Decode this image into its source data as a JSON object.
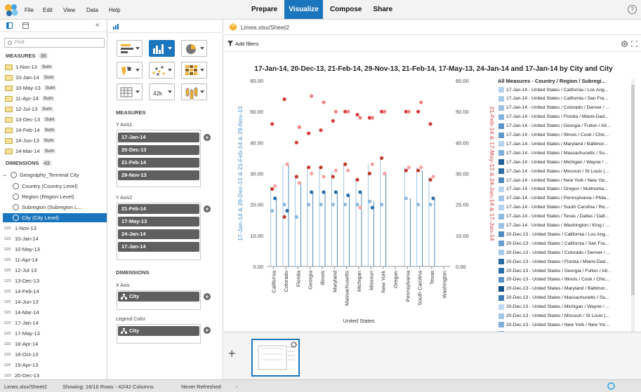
{
  "menu": {
    "items": [
      "File",
      "Edit",
      "View",
      "Data",
      "Help"
    ]
  },
  "tabs": [
    "Prepare",
    "Visualize",
    "Compose",
    "Share"
  ],
  "active_tab": "Visualize",
  "help_label": "?",
  "left_panel": {
    "search_placeholder": "Find",
    "collapse_label": "«",
    "measures_label": "MEASURES",
    "measures_count": "36",
    "measures": [
      {
        "name": "1-Nov-13",
        "agg": "Sum"
      },
      {
        "name": "10-Jan-14",
        "agg": "Sum"
      },
      {
        "name": "10-May-13",
        "agg": "Sum"
      },
      {
        "name": "11-Apr-14",
        "agg": "Sum"
      },
      {
        "name": "12-Jul-13",
        "agg": "Sum"
      },
      {
        "name": "13-Dec-13",
        "agg": "Sum"
      },
      {
        "name": "14-Feb-14",
        "agg": "Sum"
      },
      {
        "name": "14-Jun-13",
        "agg": "Sum"
      },
      {
        "name": "14-Mar-14",
        "agg": "Sum"
      }
    ],
    "dimensions_label": "DIMENSIONS",
    "dimensions_count": "43",
    "geography": "Geography_Terminal City",
    "geo_levels": [
      "Country (Country Level)",
      "Region (Region Level)",
      "Subregion (Subregion L...",
      "City (City Level)"
    ],
    "selected_level": "City (City Level)",
    "numeric_prefix": "123",
    "numeric_dims": [
      "1-Nov-13",
      "10-Jan-14",
      "10-May-13",
      "11-Apr-14",
      "12-Jul-13",
      "13-Dec-13",
      "14-Feb-14",
      "14-Jun-13",
      "14-Mar-14",
      "17-Jan-14",
      "17-May-13",
      "18-Apr-14",
      "18-Oct-13",
      "19-Apr-13",
      "20-Dec-13"
    ]
  },
  "mid_panel": {
    "text_icon_label": "42k",
    "measures_label": "MEASURES",
    "y_axis1_label": "Y Axis1",
    "y_axis1": [
      "17-Jan-14",
      "20-Dec-13",
      "21-Feb-14",
      "29-Nov-13"
    ],
    "y_axis2_label": "Y Axis2",
    "y_axis2": [
      "21-Feb-14",
      "17-May-13",
      "24-Jan-14",
      "17-Jan-14"
    ],
    "dimensions_label": "DIMENSIONS",
    "x_axis_label": "X Axis",
    "x_axis_pill": "City",
    "legend_color_label": "Legend Color",
    "legend_color_pill": "City",
    "plus_label": "+"
  },
  "content": {
    "file_title": "Limes.xlsx/Sheet2",
    "add_filters": "Add filters",
    "add_sheet_label": "+"
  },
  "colors": {
    "accent": "#1b75bc",
    "red": "#d6322c",
    "blue_axis": "#7fb1dc",
    "red_axis": "#e07b7b"
  },
  "chart_data": {
    "type": "scatter",
    "title": "17-Jan-14, 20-Dec-13, 21-Feb-14, 29-Nov-13, 21-Feb-14, 17-May-13, 24-Jan-14 and 17-Jan-14 by City and City",
    "y1label": "17-Jan-14 & 20-Dec-13 & 21-Feb-14 & 29-Nov-13",
    "y2label": "21-Feb-14 & 17-May-13 & 24-Jan-14 & 17-Jan-14",
    "xlabel": "United States",
    "ylim": [
      0,
      60
    ],
    "yticks": [
      "0.00",
      "10.00",
      "20.00",
      "30.00",
      "40.00",
      "50.00",
      "60.00"
    ],
    "categories": [
      "California",
      "Colorado",
      "Florida",
      "Georgia",
      "Illinois",
      "Maryland",
      "Massachusetts",
      "Michigan",
      "Missouri",
      "New York",
      "Oregon",
      "Pennsylvania",
      "South Carolina",
      "Texas",
      "Washington"
    ],
    "series": [
      {
        "name": "17-Jan-14",
        "color": "#8ab8e0",
        "values": [
          18,
          20,
          16,
          20,
          20,
          20,
          20,
          20,
          21,
          20,
          null,
          22,
          20,
          20,
          null
        ]
      },
      {
        "name": "20-Dec-13",
        "color": "#2a6ea8",
        "values": [
          22,
          18,
          null,
          24,
          24,
          24,
          23,
          24,
          19,
          null,
          null,
          null,
          null,
          22,
          null
        ]
      },
      {
        "name": "21-Feb-14",
        "color": "#c0392b",
        "values": [
          25,
          16,
          29,
          32,
          32,
          29,
          33,
          28,
          30,
          35,
          null,
          31,
          31,
          28,
          null
        ]
      },
      {
        "name": "29-Nov-13",
        "color": "#f5a3a3",
        "values": [
          26,
          33,
          27,
          30,
          29,
          31,
          31,
          19,
          33,
          30,
          null,
          32,
          32,
          29,
          null
        ]
      },
      {
        "name": "17-May-13",
        "color": "#d63a3a",
        "values": [
          46,
          54,
          40,
          43,
          44,
          47,
          50,
          49,
          48,
          50,
          null,
          50,
          50,
          46,
          null
        ]
      },
      {
        "name": "24-Jan-14",
        "color": "#f08080",
        "values": [
          null,
          null,
          45,
          55,
          53,
          50,
          50,
          48,
          48,
          50,
          null,
          50,
          53,
          null,
          null
        ]
      }
    ]
  },
  "legend": {
    "title": "All Measures - Country / Region / Subregi...",
    "items": [
      {
        "label": "17-Jan-14 - United States / California / Los Ang...",
        "color": "#b5d3ee"
      },
      {
        "label": "17-Jan-14 - United States / California / San Fra...",
        "color": "#a9cbeb"
      },
      {
        "label": "17-Jan-14 - United States / Colorado / Denver / ...",
        "color": "#9dc3e7"
      },
      {
        "label": "17-Jan-14 - United States / Florida / Miami-Dad...",
        "color": "#86b3de"
      },
      {
        "label": "17-Jan-14 - United States / Georgia / Fulton / Atl...",
        "color": "#5b93c8"
      },
      {
        "label": "17-Jan-14 - United States / Illinois / Cook / Chic...",
        "color": "#5f97cb"
      },
      {
        "label": "17-Jan-14 - United States / Maryland / Baltimor...",
        "color": "#b5d3ee"
      },
      {
        "label": "17-Jan-14 - United States / Massachusetts / Su...",
        "color": "#7eaedb"
      },
      {
        "label": "17-Jan-14 - United States / Michigan / Wayne / ...",
        "color": "#1f5f99"
      },
      {
        "label": "17-Jan-14 - United States / Missouri / St Louis (...",
        "color": "#2e6ea6"
      },
      {
        "label": "17-Jan-14 - United States / New York / New Yor...",
        "color": "#4e88c0"
      },
      {
        "label": "17-Jan-14 - United States / Oregon / Multnoma...",
        "color": "#b9d6ef"
      },
      {
        "label": "17-Jan-14 - United States / Pennsylvania / Phila...",
        "color": "#a1c6e8"
      },
      {
        "label": "17-Jan-14 - United States / South Carolina / Ric...",
        "color": "#b5d3ee"
      },
      {
        "label": "17-Jan-14 - United States / Texas / Dallas / Dall...",
        "color": "#8ab8e0"
      },
      {
        "label": "17-Jan-14 - United States / Washington / King / ...",
        "color": "#9cc2e6"
      },
      {
        "label": "20-Dec-13 - United States / California / Los Ang...",
        "color": "#4d89c2"
      },
      {
        "label": "20-Dec-13 - United States / California / San Fra...",
        "color": "#6a9fd0"
      },
      {
        "label": "20-Dec-13 - United States / Colorado / Denver / ...",
        "color": "#a9cbeb"
      },
      {
        "label": "20-Dec-13 - United States / Florida / Miami-Dad...",
        "color": "#2b6aa3"
      },
      {
        "label": "20-Dec-13 - United States / Georgia / Fulton / Atl...",
        "color": "#2a6ea8"
      },
      {
        "label": "20-Dec-13 - United States / Illinois / Cook / Chic...",
        "color": "#5a91c6"
      },
      {
        "label": "20-Dec-13 - United States / Maryland / Baltimor...",
        "color": "#174f87"
      },
      {
        "label": "20-Dec-13 - United States / Massachusetts / Su...",
        "color": "#3c7bb7"
      },
      {
        "label": "20-Dec-13 - United States / Michigan / Wayne / ...",
        "color": "#c0dbf1"
      },
      {
        "label": "20-Dec-13 - United States / Missouri / St Louis (...",
        "color": "#9fc5e7"
      },
      {
        "label": "20-Dec-13 - United States / New York / New Yor...",
        "color": "#7eaedb"
      },
      {
        "label": "20-Dec-13 - United States / Oregon / Multnoma...",
        "color": "#8ab8e0"
      },
      {
        "label": "20-Dec-13 - United States / Pennsylvania / Phila...",
        "color": "#6a9fd0"
      },
      {
        "label": "20-Dec-13 - United States / South Carolina / Ric...",
        "color": "#3e7db8"
      }
    ]
  },
  "status": {
    "file": "Limes.xlsx/Sheet2",
    "rows": "Showing: 16/16 Rows - 42/42 Columns",
    "refreshed": "Never Refreshed",
    "dash": "-"
  }
}
